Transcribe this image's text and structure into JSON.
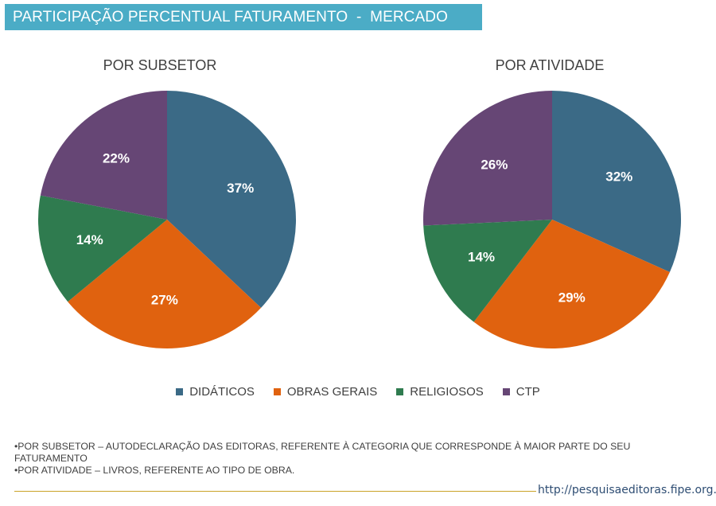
{
  "header": {
    "title": "PARTICIPAÇÃO PERCENTUAL FATURAMENTO  -  MERCADO"
  },
  "colors": {
    "DIDÁTICOS": "#3b6a86",
    "OBRAS GERAIS": "#e0620f",
    "RELIGIOSOS": "#2f7b4f",
    "CTP": "#664675",
    "header_bg": "#4bacc6"
  },
  "chart_data": [
    {
      "type": "pie",
      "title": "POR SUBSETOR",
      "categories": [
        "DIDÁTICOS",
        "OBRAS GERAIS",
        "RELIGIOSOS",
        "CTP"
      ],
      "values": [
        37,
        27,
        14,
        22
      ],
      "labels": [
        "37%",
        "27%",
        "14%",
        "22%"
      ]
    },
    {
      "type": "pie",
      "title": "POR ATIVIDADE",
      "categories": [
        "DIDÁTICOS",
        "OBRAS GERAIS",
        "RELIGIOSOS",
        "CTP"
      ],
      "values": [
        32,
        29,
        14,
        26
      ],
      "labels": [
        "32%",
        "29%",
        "14%",
        "26%"
      ]
    }
  ],
  "legend": [
    {
      "label": "DIDÁTICOS",
      "color": "#3b6a86"
    },
    {
      "label": "OBRAS GERAIS",
      "color": "#e0620f"
    },
    {
      "label": "RELIGIOSOS",
      "color": "#2f7b4f"
    },
    {
      "label": "CTP",
      "color": "#664675"
    }
  ],
  "notes": {
    "line1": "•POR SUBSETOR – AUTODECLARAÇÃO DAS EDITORAS, REFERENTE À CATEGORIA QUE CORRESPONDE À MAIOR PARTE DO SEU FATURAMENTO",
    "line2": "•POR ATIVIDADE – LIVROS, REFERENTE AO TIPO DE OBRA."
  },
  "footer": {
    "url": "http://pesquisaeditoras.fipe.org.br"
  }
}
